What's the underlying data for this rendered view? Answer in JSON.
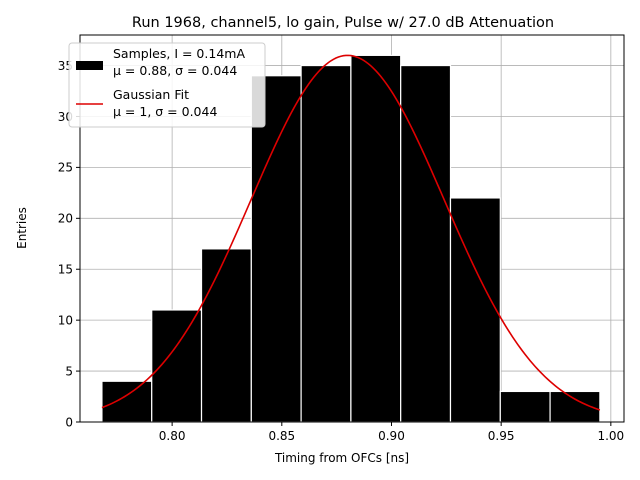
{
  "chart_data": {
    "type": "bar",
    "title": "Run 1968, channel5, lo gain, Pulse w/ 27.0 dB Attenuation",
    "xlabel": "Timing from OFCs [ns]",
    "ylabel": "Entries",
    "xlim": [
      0.758,
      1.006
    ],
    "ylim": [
      0,
      38
    ],
    "grid": true,
    "legend_placement": "top-left",
    "x_ticks": [
      0.8,
      0.85,
      0.9,
      0.95,
      1.0
    ],
    "x_tick_labels": [
      "0.80",
      "0.85",
      "0.90",
      "0.95",
      "1.00"
    ],
    "y_ticks": [
      0,
      5,
      10,
      15,
      20,
      25,
      30,
      35
    ],
    "y_tick_labels": [
      "0",
      "5",
      "10",
      "15",
      "20",
      "25",
      "30",
      "35"
    ],
    "histogram": {
      "bin_edges": [
        0.768,
        0.7907,
        0.8134,
        0.8361,
        0.8588,
        0.8815,
        0.9042,
        0.9269,
        0.9496,
        0.9723,
        0.995
      ],
      "counts": [
        4,
        11,
        17,
        34,
        35,
        36,
        35,
        22,
        3,
        3
      ],
      "color": "#000000",
      "edgecolor": "#ffffff"
    },
    "fit": {
      "type": "gaussian",
      "amplitude": 36,
      "mu": 0.88,
      "sigma": 0.044,
      "x_range": [
        0.768,
        0.995
      ],
      "color": "#dd0000"
    },
    "legend": [
      {
        "kind": "patch",
        "color": "#000000",
        "line1": "Samples, I = 0.14mA",
        "line2": "μ = 0.88, σ = 0.044"
      },
      {
        "kind": "line",
        "color": "#dd0000",
        "line1": "Gaussian Fit",
        "line2": "μ = 1, σ = 0.044"
      }
    ]
  }
}
